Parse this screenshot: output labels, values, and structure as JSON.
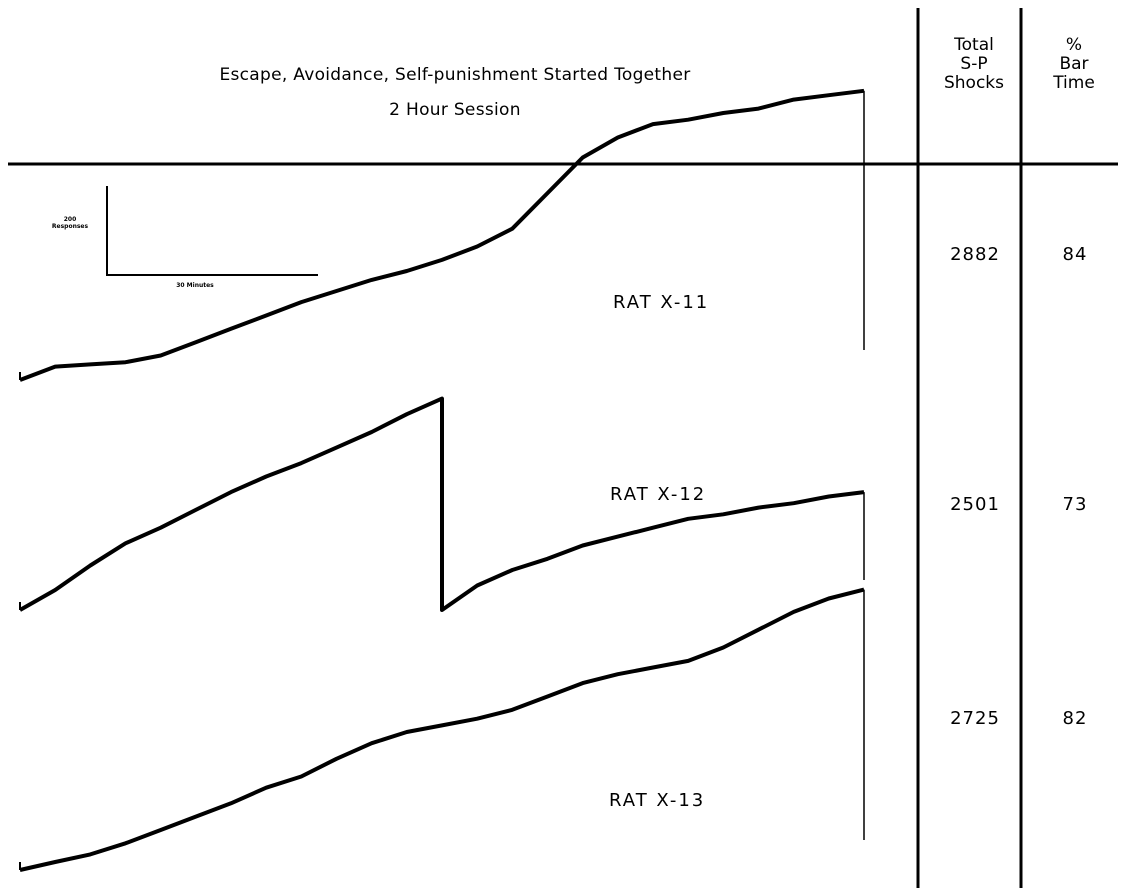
{
  "header": {
    "title": "Escape, Avoidance, Self-punishment Started Together",
    "subtitle": "2 Hour Session",
    "col1": [
      "Total",
      "S-P",
      "Shocks"
    ],
    "col2": [
      "%",
      "Bar",
      "Time"
    ]
  },
  "scale_bar": {
    "y_label": [
      "200",
      "Responses"
    ],
    "x_label": "30 Minutes",
    "y_units": 200,
    "x_units_min": 30
  },
  "rats": [
    {
      "label": "RAT X-11",
      "total_sp_shocks": "2882",
      "pct_bar_time": "84"
    },
    {
      "label": "RAT X-12",
      "total_sp_shocks": "2501",
      "pct_bar_time": "73"
    },
    {
      "label": "RAT X-13",
      "total_sp_shocks": "2725",
      "pct_bar_time": "82"
    }
  ],
  "chart_data": {
    "type": "line",
    "title": "Escape, Avoidance, Self-punishment Started Together",
    "subtitle": "2 Hour Session",
    "xlabel": "30 Minutes",
    "ylabel": "200 Responses",
    "grid": false,
    "series": [
      {
        "name": "RAT X-11",
        "x": [
          0,
          5,
          10,
          15,
          20,
          25,
          30,
          35,
          40,
          45,
          50,
          55,
          60,
          65,
          70,
          75,
          80,
          85,
          90,
          95,
          100,
          105,
          110,
          115,
          120
        ],
        "y": [
          0,
          30,
          35,
          40,
          55,
          85,
          115,
          145,
          175,
          200,
          225,
          245,
          270,
          300,
          340,
          420,
          500,
          545,
          575,
          585,
          600,
          610,
          630,
          640,
          650
        ]
      },
      {
        "name": "RAT X-12",
        "x": [
          0,
          5,
          10,
          15,
          20,
          25,
          30,
          35,
          40,
          45,
          50,
          55,
          60,
          60,
          65,
          70,
          75,
          80,
          85,
          90,
          95,
          100,
          105,
          110,
          115,
          120
        ],
        "y": [
          0,
          45,
          100,
          150,
          185,
          225,
          265,
          300,
          330,
          365,
          400,
          440,
          475,
          0,
          55,
          90,
          115,
          145,
          165,
          185,
          205,
          215,
          230,
          240,
          255,
          265
        ]
      },
      {
        "name": "RAT X-13",
        "x": [
          0,
          5,
          10,
          15,
          20,
          25,
          30,
          35,
          40,
          45,
          50,
          55,
          60,
          65,
          70,
          75,
          80,
          85,
          90,
          95,
          100,
          105,
          110,
          115,
          120
        ],
        "y": [
          0,
          18,
          35,
          60,
          90,
          120,
          150,
          185,
          210,
          250,
          285,
          310,
          325,
          340,
          360,
          390,
          420,
          440,
          455,
          470,
          500,
          540,
          580,
          610,
          630
        ]
      }
    ]
  }
}
